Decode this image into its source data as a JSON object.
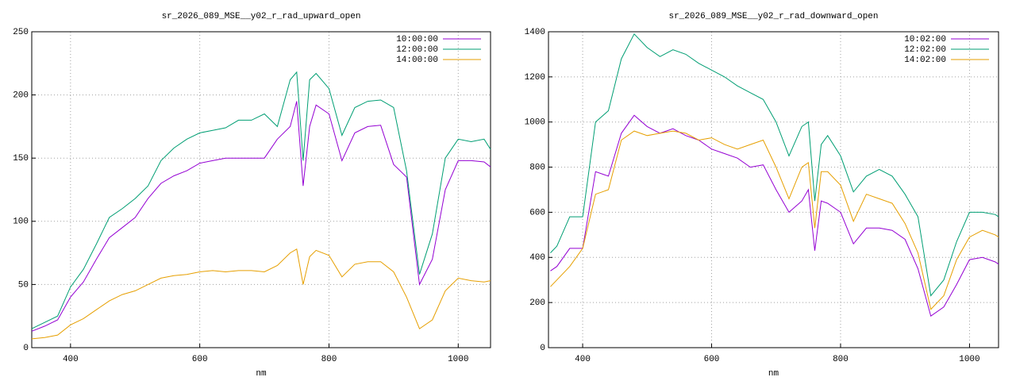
{
  "chart_data": [
    {
      "type": "line",
      "title": "sr_2026_089_MSE__y02_r_rad_upward_open",
      "x_label": "nm",
      "x": [
        340,
        360,
        380,
        400,
        420,
        440,
        460,
        480,
        500,
        520,
        540,
        560,
        580,
        600,
        620,
        640,
        660,
        680,
        700,
        720,
        740,
        750,
        760,
        770,
        780,
        800,
        820,
        840,
        860,
        880,
        900,
        920,
        940,
        960,
        980,
        1000,
        1020,
        1040,
        1050
      ],
      "series": [
        {
          "name": "10:00:00",
          "color": "#9400d3",
          "values": [
            13,
            17,
            22,
            40,
            52,
            70,
            87,
            95,
            103,
            118,
            130,
            136,
            140,
            146,
            148,
            150,
            150,
            150,
            150,
            165,
            175,
            195,
            128,
            175,
            192,
            185,
            148,
            170,
            175,
            176,
            145,
            135,
            50,
            70,
            125,
            148,
            148,
            147,
            143
          ]
        },
        {
          "name": "12:00:00",
          "color": "#009e73",
          "values": [
            15,
            20,
            25,
            48,
            62,
            82,
            103,
            110,
            118,
            128,
            148,
            158,
            165,
            170,
            172,
            174,
            180,
            180,
            185,
            175,
            212,
            218,
            148,
            212,
            217,
            205,
            168,
            190,
            195,
            196,
            190,
            140,
            58,
            90,
            150,
            165,
            163,
            165,
            157
          ]
        },
        {
          "name": "14:00:00",
          "color": "#e69f00",
          "values": [
            7,
            8,
            10,
            18,
            23,
            30,
            37,
            42,
            45,
            50,
            55,
            57,
            58,
            60,
            61,
            60,
            61,
            61,
            60,
            65,
            75,
            78,
            50,
            72,
            77,
            73,
            56,
            66,
            68,
            68,
            60,
            40,
            15,
            22,
            45,
            55,
            53,
            52,
            53
          ]
        }
      ],
      "xlim": [
        340,
        1050
      ],
      "xticks": [
        400,
        600,
        800,
        1000
      ],
      "ylim": [
        0,
        250
      ],
      "yticks": [
        0,
        50,
        100,
        150,
        200,
        250
      ],
      "grid": true,
      "legend": "top-right"
    },
    {
      "type": "line",
      "title": "sr_2026_089_MSE__y02_r_rad_downward_open",
      "x_label": "nm",
      "x": [
        350,
        360,
        380,
        400,
        420,
        440,
        460,
        480,
        500,
        520,
        540,
        560,
        580,
        600,
        620,
        640,
        660,
        680,
        700,
        720,
        740,
        750,
        760,
        770,
        780,
        800,
        820,
        840,
        860,
        880,
        900,
        920,
        940,
        960,
        980,
        1000,
        1020,
        1040,
        1045
      ],
      "series": [
        {
          "name": "10:02:00",
          "color": "#9400d3",
          "values": [
            340,
            360,
            440,
            440,
            780,
            760,
            950,
            1030,
            980,
            950,
            970,
            940,
            920,
            880,
            860,
            840,
            800,
            810,
            700,
            600,
            650,
            700,
            430,
            650,
            640,
            600,
            460,
            530,
            530,
            520,
            480,
            350,
            140,
            180,
            280,
            390,
            400,
            380,
            370
          ]
        },
        {
          "name": "12:02:00",
          "color": "#009e73",
          "values": [
            420,
            450,
            580,
            580,
            1000,
            1050,
            1280,
            1390,
            1330,
            1290,
            1320,
            1300,
            1260,
            1230,
            1200,
            1160,
            1130,
            1100,
            1000,
            850,
            980,
            1000,
            650,
            900,
            940,
            850,
            690,
            760,
            790,
            760,
            680,
            580,
            230,
            300,
            470,
            600,
            600,
            590,
            580
          ]
        },
        {
          "name": "14:02:00",
          "color": "#e69f00",
          "values": [
            270,
            300,
            360,
            440,
            680,
            700,
            920,
            960,
            940,
            950,
            960,
            950,
            920,
            930,
            900,
            880,
            900,
            920,
            800,
            660,
            800,
            820,
            530,
            780,
            780,
            720,
            560,
            680,
            660,
            640,
            550,
            420,
            170,
            230,
            390,
            490,
            520,
            500,
            490
          ]
        }
      ],
      "xlim": [
        347,
        1045
      ],
      "xticks": [
        400,
        600,
        800,
        1000
      ],
      "ylim": [
        0,
        1400
      ],
      "yticks": [
        0,
        200,
        400,
        600,
        800,
        1000,
        1200,
        1400
      ],
      "grid": true,
      "legend": "top-right"
    }
  ]
}
